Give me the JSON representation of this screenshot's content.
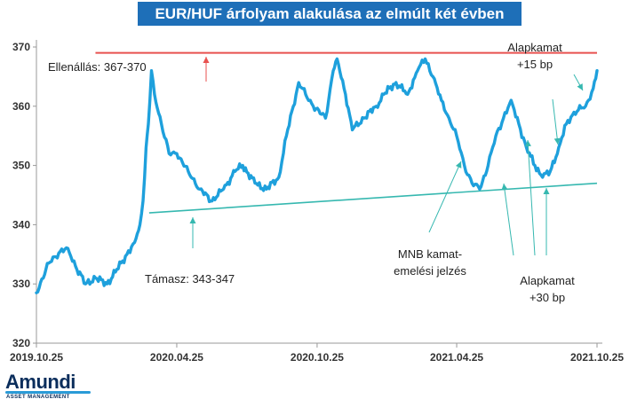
{
  "chart_data": {
    "type": "line",
    "title": "EUR/HUF árfolyam alakulása az elmúlt két évben",
    "x_ticks": [
      "2019.10.25",
      "2020.04.25",
      "2020.10.25",
      "2021.04.25",
      "2021.10.25"
    ],
    "y_ticks": [
      320,
      330,
      340,
      350,
      360,
      370
    ],
    "ylim": [
      320,
      370
    ],
    "xlim": [
      "2019.10.25",
      "2021.10.25"
    ],
    "grid": false,
    "series": [
      {
        "color": "#1ea0dc",
        "points": [
          [
            "2019.10.25",
            328.5
          ],
          [
            "2019.11.10",
            333.5
          ],
          [
            "2019.11.25",
            335.5
          ],
          [
            "2019.12.05",
            336
          ],
          [
            "2019.12.15",
            333
          ],
          [
            "2019.12.28",
            330
          ],
          [
            "2020.01.10",
            331
          ],
          [
            "2020.01.25",
            330
          ],
          [
            "2020.02.05",
            332
          ],
          [
            "2020.02.20",
            335
          ],
          [
            "2020.03.01",
            337
          ],
          [
            "2020.03.08",
            340
          ],
          [
            "2020.03.12",
            344
          ],
          [
            "2020.03.16",
            353
          ],
          [
            "2020.03.19",
            357
          ],
          [
            "2020.03.23",
            366
          ],
          [
            "2020.03.27",
            362
          ],
          [
            "2020.04.05",
            357
          ],
          [
            "2020.04.15",
            352
          ],
          [
            "2020.04.25",
            352
          ],
          [
            "2020.05.10",
            349
          ],
          [
            "2020.05.25",
            346
          ],
          [
            "2020.06.10",
            344
          ],
          [
            "2020.06.25",
            346
          ],
          [
            "2020.07.10",
            349
          ],
          [
            "2020.07.20",
            350
          ],
          [
            "2020.08.05",
            347
          ],
          [
            "2020.08.20",
            346
          ],
          [
            "2020.09.05",
            348
          ],
          [
            "2020.09.15",
            355
          ],
          [
            "2020.10.01",
            364
          ],
          [
            "2020.10.10",
            362
          ],
          [
            "2020.10.20",
            360
          ],
          [
            "2020.11.05",
            358
          ],
          [
            "2020.11.15",
            366
          ],
          [
            "2020.11.20",
            368
          ],
          [
            "2020.12.01",
            362
          ],
          [
            "2020.12.10",
            356
          ],
          [
            "2020.12.25",
            358
          ],
          [
            "2021.01.10",
            360
          ],
          [
            "2021.01.20",
            362
          ],
          [
            "2021.02.05",
            364
          ],
          [
            "2021.02.20",
            362
          ],
          [
            "2021.03.05",
            366
          ],
          [
            "2021.03.15",
            368
          ],
          [
            "2021.03.25",
            365
          ],
          [
            "2021.04.05",
            361
          ],
          [
            "2021.04.15",
            358
          ],
          [
            "2021.04.25",
            355
          ],
          [
            "2021.05.05",
            350
          ],
          [
            "2021.05.15",
            347
          ],
          [
            "2021.05.25",
            346
          ],
          [
            "2021.06.05",
            350
          ],
          [
            "2021.06.15",
            355
          ],
          [
            "2021.06.25",
            358
          ],
          [
            "2021.07.05",
            361
          ],
          [
            "2021.07.15",
            357
          ],
          [
            "2021.07.25",
            353
          ],
          [
            "2021.08.05",
            350
          ],
          [
            "2021.08.15",
            348
          ],
          [
            "2021.08.25",
            349
          ],
          [
            "2021.09.05",
            353
          ],
          [
            "2021.09.15",
            357
          ],
          [
            "2021.09.25",
            359
          ],
          [
            "2021.10.10",
            360
          ],
          [
            "2021.10.20",
            363
          ],
          [
            "2021.10.25",
            366
          ]
        ]
      }
    ],
    "reference_lines": [
      {
        "kind": "resistance",
        "color": "#e8514f",
        "from": [
          "2020.01.10",
          369
        ],
        "to": [
          "2021.10.25",
          369
        ]
      },
      {
        "kind": "support",
        "color": "#36b8b0",
        "from": [
          "2020.03.20",
          342
        ],
        "to": [
          "2021.10.25",
          347
        ]
      }
    ],
    "annotations": [
      {
        "id": "resistance",
        "lines": [
          "Ellenállás: 367-370"
        ],
        "color": "#e8514f"
      },
      {
        "id": "support",
        "lines": [
          "Támasz: 343-347"
        ],
        "color": "#36b8b0"
      },
      {
        "id": "mnb",
        "lines": [
          "MNB kamat-",
          "emelési jelzés"
        ]
      },
      {
        "id": "rate30",
        "lines": [
          "Alapkamat",
          "+30 bp"
        ]
      },
      {
        "id": "rate15",
        "lines": [
          "Alapkamat",
          "+15 bp"
        ]
      }
    ]
  },
  "logo": {
    "name": "Amundi",
    "subtitle": "ASSET MANAGEMENT",
    "color": "#0b2e5c",
    "accent": "#2a9bd7"
  }
}
